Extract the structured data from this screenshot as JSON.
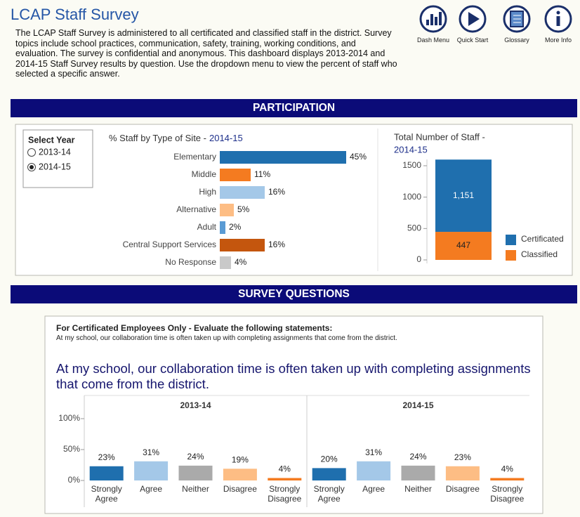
{
  "header": {
    "title": "LCAP Staff Survey",
    "description": "The LCAP Staff Survey is administered to all certificated and classified staff in the district. Survey topics include school practices, communication, safety, training, working conditions, and evaluation. The survey is confidential and anonymous. This dashboard displays 2013-2014 and 2014-15 Staff Survey results by question. Use the dropdown menu to view the percent of staff who selected a specific answer."
  },
  "nav": [
    "Dash Menu",
    "Quick Start",
    "Glossary",
    "More Info"
  ],
  "sections": [
    "PARTICIPATION",
    "SURVEY QUESTIONS"
  ],
  "year_selector": {
    "title": "Select Year",
    "options": [
      "2013-14",
      "2014-15"
    ],
    "selected": 1
  },
  "question": {
    "heading": "For Certificated Employees Only - Evaluate the following statements:",
    "statement": "At my school, our collaboration time is often taken up with completing assignments that come from the district.",
    "title": "At my school, our collaboration time is often taken up with completing assignments that come from the district."
  },
  "chart_data": [
    {
      "type": "hbar",
      "title": "% Staff by Type of Site -",
      "title_year": "2014-15",
      "categories": [
        "Elementary",
        "Middle",
        "High",
        "Alternative",
        "Adult",
        "Central Support Services",
        "No Response"
      ],
      "values": [
        45,
        11,
        16,
        5,
        2,
        16,
        4
      ],
      "value_labels": [
        "45%",
        "11%",
        "16%",
        "5%",
        "2%",
        "16%",
        "4%"
      ],
      "colors": [
        "#1f6fae",
        "#f47b20",
        "#a4c8e8",
        "#fdbd84",
        "#5a9bd4",
        "#c4560e",
        "#c9c9c9"
      ]
    },
    {
      "type": "stacked",
      "title": "Total Number of Staff -",
      "title_year": "2014-15",
      "ylim": [
        0,
        1600
      ],
      "yticks": [
        0,
        500,
        1000,
        1500
      ],
      "series": [
        {
          "name": "Certificated",
          "color": "#1f6fae",
          "values": [
            1151
          ],
          "value_labels": [
            "1,151"
          ]
        },
        {
          "name": "Classified",
          "color": "#f47b20",
          "values": [
            447
          ]
        }
      ]
    },
    {
      "type": "grouped",
      "categories": [
        "Strongly Agree",
        "Agree",
        "Neither",
        "Disagree",
        "Strongly Disagree"
      ],
      "colors": [
        "#1f6fae",
        "#a4c8e8",
        "#aaaaaa",
        "#fdbd84",
        "#f47b20"
      ],
      "ylim": [
        0,
        100
      ],
      "yticks": [
        {
          "value": 0,
          "label": "0%"
        },
        {
          "value": 50,
          "label": "50%"
        },
        {
          "value": 100,
          "label": "100%"
        }
      ],
      "series": [
        {
          "name": "2013-14",
          "values": [
            23,
            31,
            24,
            19,
            4
          ],
          "value_labels": [
            "23%",
            "31%",
            "24%",
            "19%",
            "4%"
          ]
        },
        {
          "name": "2014-15",
          "values": [
            20,
            31,
            24,
            23,
            4
          ],
          "value_labels": [
            "20%",
            "31%",
            "24%",
            "23%",
            "4%"
          ]
        }
      ]
    }
  ]
}
